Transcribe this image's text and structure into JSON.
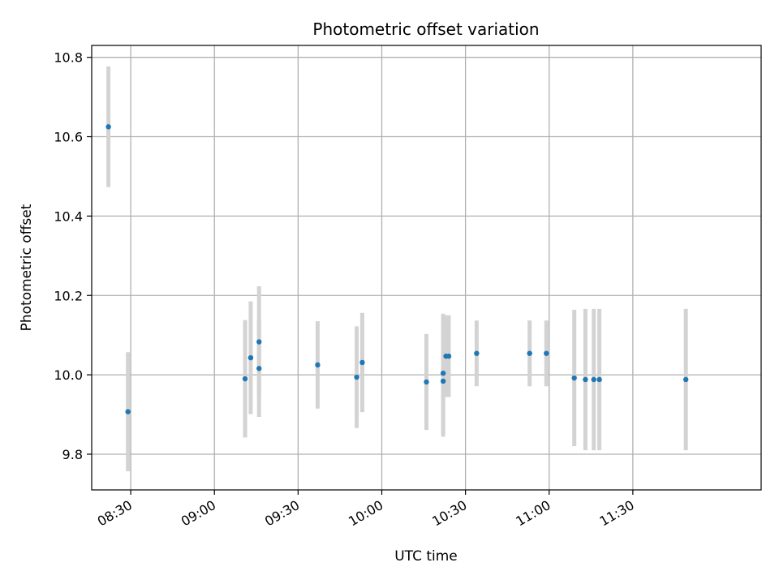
{
  "chart_data": {
    "type": "scatter",
    "title": "Photometric offset variation",
    "xlabel": "UTC time",
    "ylabel": "Photometric offset",
    "x_axis_type": "time",
    "xlim": [
      "08:16",
      "12:16"
    ],
    "ylim": [
      9.71,
      10.83
    ],
    "x_ticks": [
      "08:30",
      "09:00",
      "09:30",
      "10:00",
      "10:30",
      "11:00",
      "11:30"
    ],
    "y_ticks": [
      9.8,
      10.0,
      10.2,
      10.4,
      10.6,
      10.8
    ],
    "y_tick_labels": [
      "9.8",
      "10.0",
      "10.2",
      "10.4",
      "10.6",
      "10.8"
    ],
    "grid": true,
    "colors": {
      "marker": "#1f77b4",
      "errorbar": "#d3d3d3",
      "grid": "#b0b0b0"
    },
    "points": [
      {
        "x": "08:22",
        "y": 10.625,
        "err": 0.152
      },
      {
        "x": "08:29",
        "y": 9.907,
        "err": 0.15
      },
      {
        "x": "09:11",
        "y": 9.99,
        "err": 0.148
      },
      {
        "x": "09:13",
        "y": 10.043,
        "err": 0.142
      },
      {
        "x": "09:16",
        "y": 10.083,
        "err": 0.14
      },
      {
        "x": "09:16",
        "y": 10.016,
        "err": 0.122
      },
      {
        "x": "09:37",
        "y": 10.025,
        "err": 0.11
      },
      {
        "x": "09:51",
        "y": 9.994,
        "err": 0.128
      },
      {
        "x": "09:53",
        "y": 10.031,
        "err": 0.125
      },
      {
        "x": "10:16",
        "y": 9.982,
        "err": 0.121
      },
      {
        "x": "10:22",
        "y": 9.984,
        "err": 0.14
      },
      {
        "x": "10:22",
        "y": 10.004,
        "err": 0.15
      },
      {
        "x": "10:23",
        "y": 10.047,
        "err": 0.103
      },
      {
        "x": "10:24",
        "y": 10.047,
        "err": 0.103
      },
      {
        "x": "10:34",
        "y": 10.054,
        "err": 0.083
      },
      {
        "x": "10:53",
        "y": 10.054,
        "err": 0.083
      },
      {
        "x": "10:59",
        "y": 10.054,
        "err": 0.083
      },
      {
        "x": "11:09",
        "y": 9.992,
        "err": 0.172
      },
      {
        "x": "11:13",
        "y": 9.988,
        "err": 0.178
      },
      {
        "x": "11:16",
        "y": 9.988,
        "err": 0.178
      },
      {
        "x": "11:18",
        "y": 9.988,
        "err": 0.178
      },
      {
        "x": "11:49",
        "y": 9.988,
        "err": 0.178
      }
    ]
  }
}
